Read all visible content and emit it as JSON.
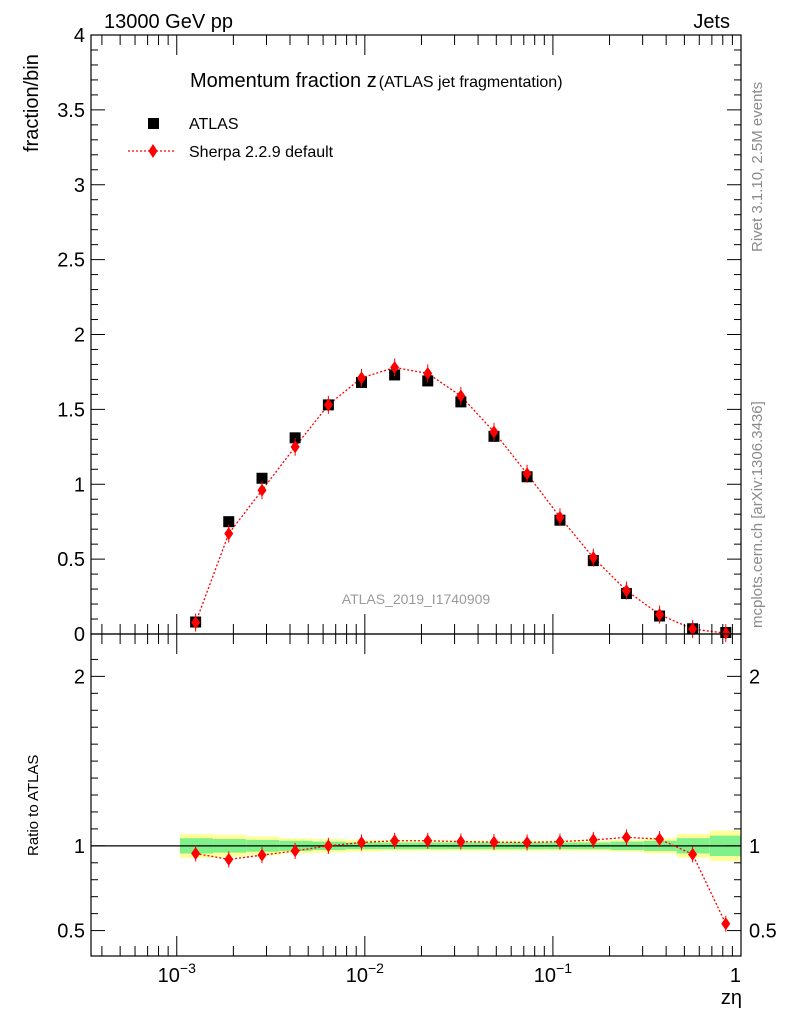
{
  "header": {
    "left": "13000 GeV pp",
    "right": "Jets"
  },
  "side_labels": {
    "rivet": "Rivet 3.1.10,  2.5M events",
    "mcplots": "mcplots.cern.ch [arXiv:1306.3436]"
  },
  "colors": {
    "data": "#000000",
    "mc": "#ff0000",
    "band_inner": "#7ff08a",
    "band_outer": "#ffff99",
    "side_text": "#8a8a8a"
  },
  "chart_data": [
    {
      "type": "scatter",
      "title": "Momentum fraction z",
      "title_suffix": "(ATLAS jet fragmentation)",
      "ylabel": "fraction/bin",
      "watermark": "ATLAS_2019_I1740909",
      "xscale": "log",
      "xlim": [
        0.00035,
        1.0
      ],
      "ylim": [
        0,
        4
      ],
      "yticks": [
        0,
        0.5,
        1,
        1.5,
        2,
        2.5,
        3,
        3.5,
        4
      ],
      "ytick_labels": [
        "0",
        "0.5",
        "1",
        "1.5",
        "2",
        "2.5",
        "3",
        "3.5",
        "4"
      ],
      "legend_position": "top-left",
      "series": [
        {
          "name": "ATLAS",
          "marker": "square",
          "x": [
            0.00126,
            0.00189,
            0.00284,
            0.00426,
            0.0064,
            0.0096,
            0.0144,
            0.0216,
            0.0324,
            0.0486,
            0.0729,
            0.109,
            0.164,
            0.246,
            0.369,
            0.553,
            0.83
          ],
          "y": [
            0.08,
            0.75,
            1.04,
            1.31,
            1.53,
            1.68,
            1.73,
            1.69,
            1.55,
            1.32,
            1.05,
            0.76,
            0.49,
            0.27,
            0.12,
            0.035,
            0.01
          ]
        },
        {
          "name": "Sherpa 2.2.9 default",
          "marker": "diamond",
          "linestyle": "dotted",
          "x": [
            0.00126,
            0.00189,
            0.00284,
            0.00426,
            0.0064,
            0.0096,
            0.0144,
            0.0216,
            0.0324,
            0.0486,
            0.0729,
            0.109,
            0.164,
            0.246,
            0.369,
            0.553,
            0.83
          ],
          "y": [
            0.076,
            0.67,
            0.96,
            1.25,
            1.53,
            1.71,
            1.78,
            1.74,
            1.59,
            1.35,
            1.07,
            0.78,
            0.51,
            0.29,
            0.13,
            0.033,
            0.0055
          ]
        }
      ]
    },
    {
      "type": "line",
      "ylabel": "Ratio to ATLAS",
      "xlabel": "zη",
      "xscale": "log",
      "xlim": [
        0.00035,
        1.0
      ],
      "ylim": [
        0.35,
        2.25
      ],
      "yticks": [
        0.5,
        1,
        2
      ],
      "ytick_labels": [
        "0.5",
        "1",
        "2"
      ],
      "xtick_labels": [
        {
          "base": "10",
          "exp": "−3"
        },
        {
          "base": "10",
          "exp": "−2"
        },
        {
          "base": "10",
          "exp": "−1"
        },
        {
          "base": "1",
          "exp": ""
        }
      ],
      "bin_edges": [
        0.00104,
        0.00156,
        0.00234,
        0.00351,
        0.00527,
        0.0079,
        0.0119,
        0.0178,
        0.0267,
        0.04,
        0.06,
        0.09,
        0.135,
        0.202,
        0.304,
        0.455,
        0.683,
        1.0
      ],
      "band_inner": [
        0.045,
        0.04,
        0.035,
        0.03,
        0.025,
        0.02,
        0.02,
        0.02,
        0.02,
        0.02,
        0.02,
        0.02,
        0.02,
        0.025,
        0.03,
        0.045,
        0.06
      ],
      "band_outer": [
        0.07,
        0.065,
        0.055,
        0.045,
        0.04,
        0.035,
        0.03,
        0.03,
        0.03,
        0.03,
        0.03,
        0.03,
        0.03,
        0.035,
        0.045,
        0.07,
        0.09
      ],
      "series": [
        {
          "name": "Sherpa 2.2.9 default",
          "x": [
            0.00126,
            0.00189,
            0.00284,
            0.00426,
            0.0064,
            0.0096,
            0.0144,
            0.0216,
            0.0324,
            0.0486,
            0.0729,
            0.109,
            0.164,
            0.246,
            0.369,
            0.553,
            0.83
          ],
          "y": [
            0.955,
            0.92,
            0.945,
            0.97,
            1.0,
            1.02,
            1.03,
            1.03,
            1.025,
            1.022,
            1.02,
            1.025,
            1.035,
            1.05,
            1.04,
            0.95,
            0.54
          ]
        }
      ]
    }
  ]
}
